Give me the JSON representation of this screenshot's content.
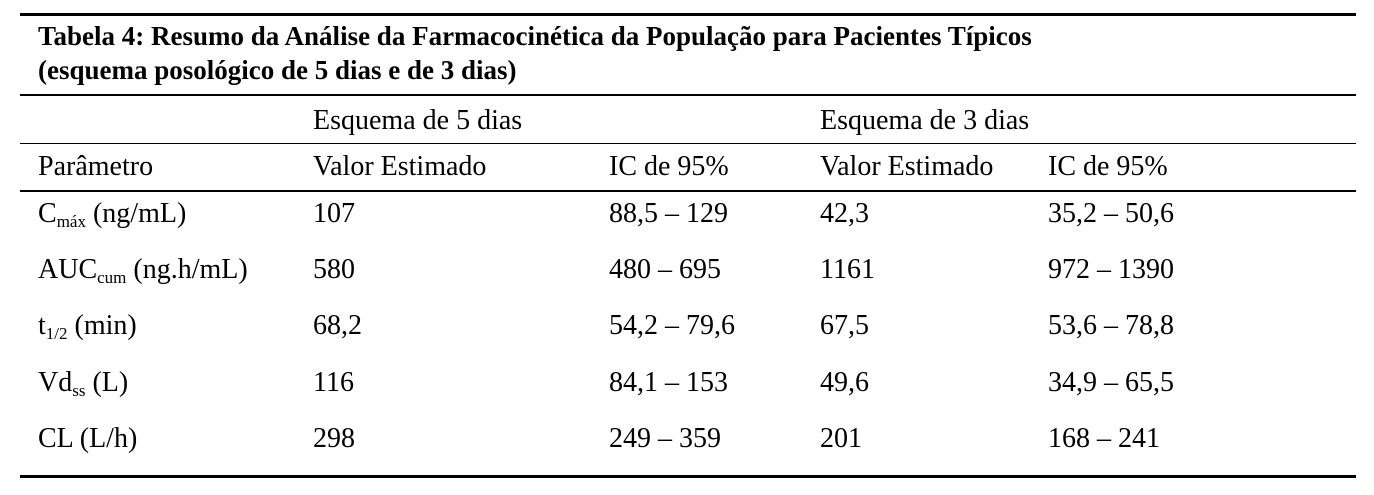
{
  "table": {
    "title_line1": "Tabela 4: Resumo da Análise da Farmacocinética da População para Pacientes Típicos",
    "title_line2": "(esquema posológico de 5 dias e de 3 dias)",
    "group_headers": {
      "five_day": "Esquema de 5 dias",
      "three_day": "Esquema de 3 dias"
    },
    "column_headers": {
      "parameter": "Parâmetro",
      "five_estimate": "Valor Estimado",
      "five_ci": "IC de 95%",
      "three_estimate": "Valor Estimado",
      "three_ci": "IC de 95%"
    },
    "rows": [
      {
        "param_main": "C",
        "param_sub": "máx",
        "param_unit": " (ng/mL)",
        "five_estimate": "107",
        "five_ci": "88,5 – 129",
        "three_estimate": "42,3",
        "three_ci": "35,2 – 50,6"
      },
      {
        "param_main": "AUC",
        "param_sub": "cum",
        "param_unit": " (ng.h/mL)",
        "five_estimate": "580",
        "five_ci": "480 – 695",
        "three_estimate": "1161",
        "three_ci": "972 – 1390"
      },
      {
        "param_main": "t",
        "param_sub": "1/2",
        "param_unit": " (min)",
        "five_estimate": "68,2",
        "five_ci": "54,2 – 79,6",
        "three_estimate": "67,5",
        "three_ci": "53,6 – 78,8"
      },
      {
        "param_main": "Vd",
        "param_sub": "ss",
        "param_unit": " (L)",
        "five_estimate": "116",
        "five_ci": "84,1 – 153",
        "three_estimate": "49,6",
        "three_ci": "34,9 – 65,5"
      },
      {
        "param_main": "CL (L/h)",
        "param_sub": "",
        "param_unit": "",
        "five_estimate": "298",
        "five_ci": "249 – 359",
        "three_estimate": "201",
        "three_ci": "168 – 241"
      }
    ]
  }
}
